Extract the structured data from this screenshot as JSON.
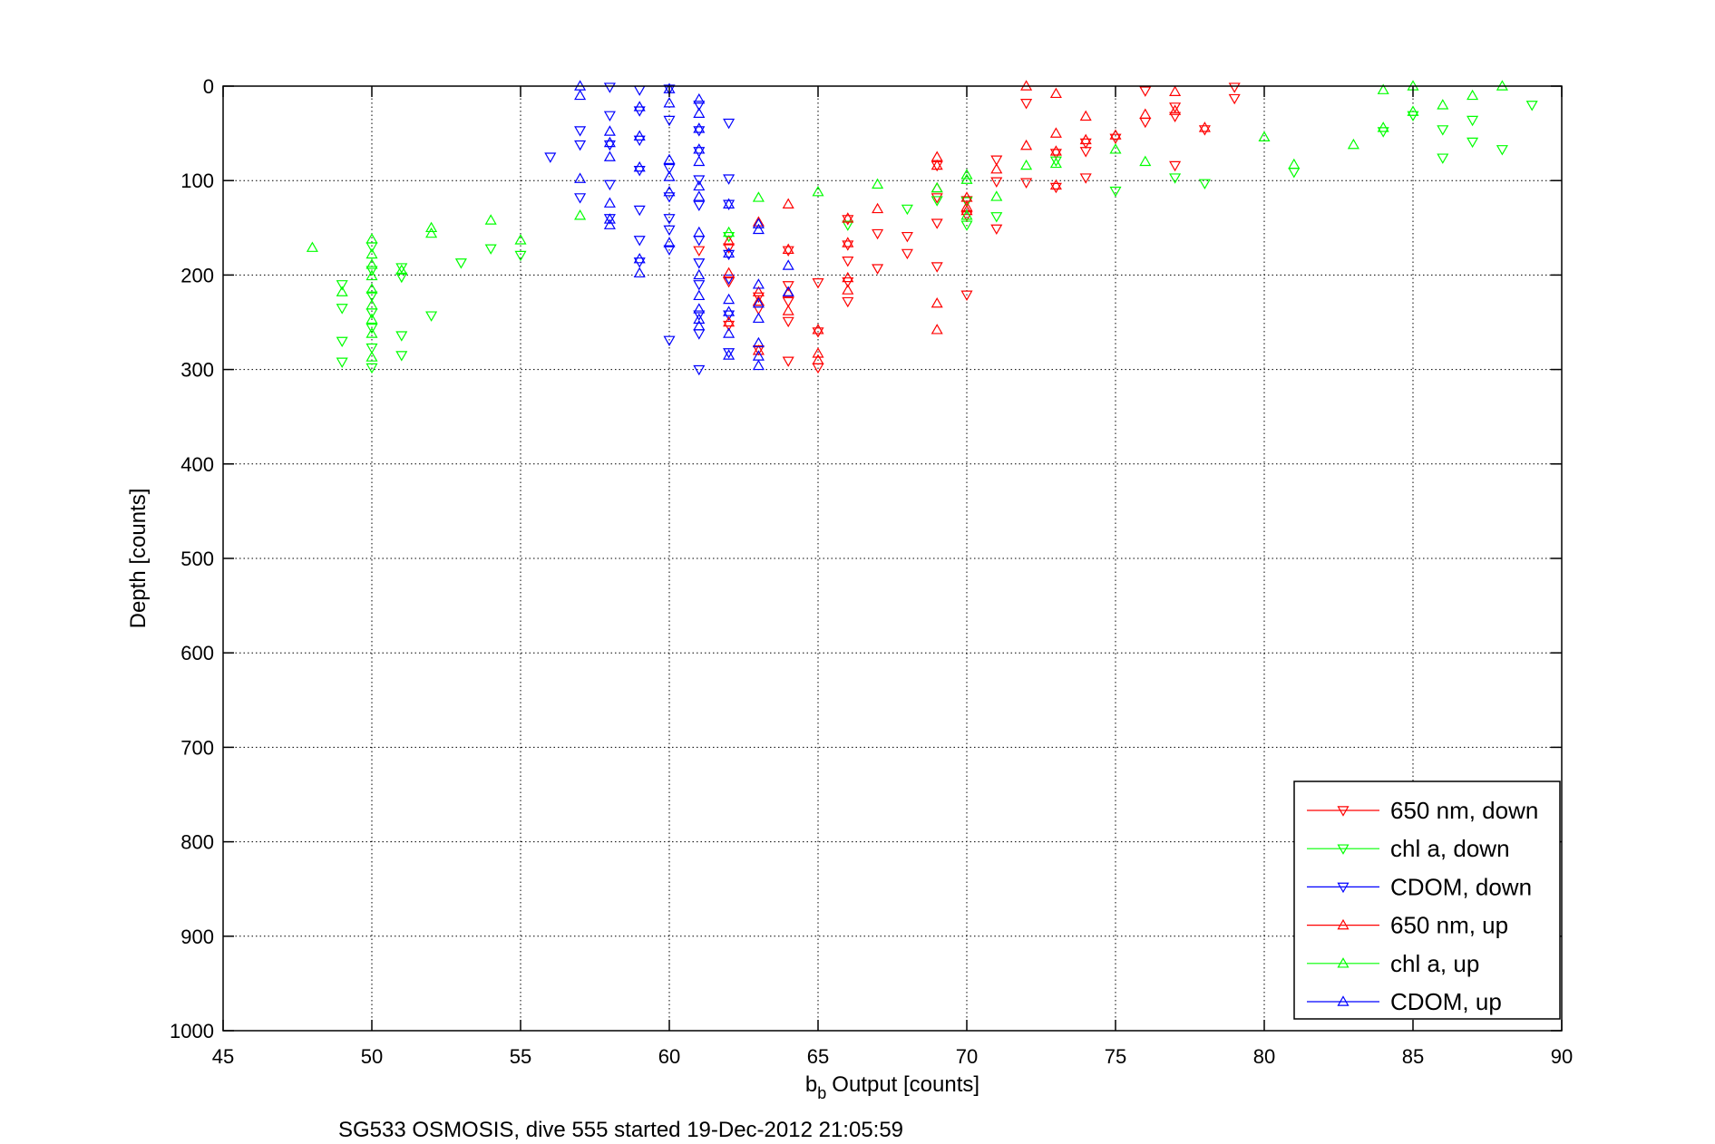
{
  "chart_data": {
    "type": "scatter",
    "xlabel": "Output [counts]",
    "xlabel_base": "b",
    "xlabel_sub": "b",
    "ylabel": "Depth [counts]",
    "caption": "SG533 OSMOSIS, dive 555 started 19-Dec-2012 21:05:59",
    "xlim": [
      45,
      90
    ],
    "ylim": [
      0,
      1000
    ],
    "y_reversed": true,
    "grid": true,
    "legend_position": "bottom-right",
    "x_ticks": [
      "45",
      "50",
      "55",
      "60",
      "65",
      "70",
      "75",
      "80",
      "85",
      "90"
    ],
    "y_ticks": [
      "0",
      "100",
      "200",
      "300",
      "400",
      "500",
      "600",
      "700",
      "800",
      "900",
      "1000"
    ],
    "series": [
      {
        "name": "650 nm, down",
        "marker": "triangle-down",
        "color": "#ff0000",
        "points": [
          [
            79,
            1
          ],
          [
            79,
            13
          ],
          [
            78,
            46
          ],
          [
            77,
            22
          ],
          [
            77,
            32
          ],
          [
            77,
            84
          ],
          [
            76,
            5
          ],
          [
            76,
            38
          ],
          [
            75,
            55
          ],
          [
            74,
            60
          ],
          [
            74,
            69
          ],
          [
            74,
            97
          ],
          [
            73,
            71
          ],
          [
            73,
            107
          ],
          [
            72,
            18
          ],
          [
            72,
            102
          ],
          [
            71,
            78
          ],
          [
            71,
            101
          ],
          [
            71,
            151
          ],
          [
            70,
            121
          ],
          [
            70,
            137
          ],
          [
            70,
            221
          ],
          [
            69,
            84
          ],
          [
            69,
            118
          ],
          [
            69,
            145
          ],
          [
            69,
            191
          ],
          [
            68,
            159
          ],
          [
            68,
            177
          ],
          [
            67,
            156
          ],
          [
            67,
            193
          ],
          [
            66,
            141
          ],
          [
            66,
            168
          ],
          [
            66,
            185
          ],
          [
            66,
            207
          ],
          [
            66,
            228
          ],
          [
            65,
            208
          ],
          [
            65,
            260
          ],
          [
            65,
            298
          ],
          [
            64,
            174
          ],
          [
            64,
            211
          ],
          [
            64,
            228
          ],
          [
            64,
            249
          ],
          [
            64,
            291
          ],
          [
            63,
            223
          ],
          [
            63,
            236
          ],
          [
            63,
            279
          ],
          [
            62,
            171
          ],
          [
            62,
            207
          ],
          [
            62,
            253
          ],
          [
            61,
            174
          ]
        ]
      },
      {
        "name": "chl a, down",
        "marker": "triangle-down",
        "color": "#00ff00",
        "points": [
          [
            89,
            20
          ],
          [
            88,
            67
          ],
          [
            87,
            36
          ],
          [
            87,
            59
          ],
          [
            86,
            46
          ],
          [
            86,
            76
          ],
          [
            85,
            31
          ],
          [
            84,
            48
          ],
          [
            81,
            91
          ],
          [
            78,
            103
          ],
          [
            77,
            97
          ],
          [
            75,
            111
          ],
          [
            73,
            79
          ],
          [
            71,
            138
          ],
          [
            70,
            122
          ],
          [
            70,
            147
          ],
          [
            69,
            121
          ],
          [
            68,
            130
          ],
          [
            66,
            147
          ],
          [
            62,
            159
          ],
          [
            55,
            179
          ],
          [
            54,
            172
          ],
          [
            53,
            187
          ],
          [
            52,
            243
          ],
          [
            51,
            192
          ],
          [
            51,
            202
          ],
          [
            51,
            264
          ],
          [
            51,
            285
          ],
          [
            50,
            170
          ],
          [
            50,
            195
          ],
          [
            50,
            222
          ],
          [
            50,
            240
          ],
          [
            50,
            256
          ],
          [
            50,
            277
          ],
          [
            50,
            298
          ],
          [
            49,
            210
          ],
          [
            49,
            235
          ],
          [
            49,
            270
          ],
          [
            49,
            292
          ]
        ]
      },
      {
        "name": "CDOM, down",
        "marker": "triangle-down",
        "color": "#0000ff",
        "points": [
          [
            62,
            39
          ],
          [
            62,
            98
          ],
          [
            62,
            125
          ],
          [
            62,
            178
          ],
          [
            62,
            204
          ],
          [
            62,
            242
          ],
          [
            62,
            282
          ],
          [
            61,
            20
          ],
          [
            61,
            47
          ],
          [
            61,
            69
          ],
          [
            61,
            99
          ],
          [
            61,
            126
          ],
          [
            61,
            163
          ],
          [
            61,
            187
          ],
          [
            61,
            210
          ],
          [
            61,
            242
          ],
          [
            61,
            262
          ],
          [
            61,
            300
          ],
          [
            60,
            3
          ],
          [
            60,
            36
          ],
          [
            60,
            87
          ],
          [
            60,
            117
          ],
          [
            60,
            140
          ],
          [
            60,
            152
          ],
          [
            60,
            173
          ],
          [
            60,
            269
          ],
          [
            59,
            4
          ],
          [
            59,
            26
          ],
          [
            59,
            57
          ],
          [
            59,
            89
          ],
          [
            59,
            131
          ],
          [
            59,
            163
          ],
          [
            59,
            186
          ],
          [
            58,
            1
          ],
          [
            58,
            31
          ],
          [
            58,
            62
          ],
          [
            58,
            104
          ],
          [
            58,
            140
          ],
          [
            57,
            47
          ],
          [
            57,
            62
          ],
          [
            57,
            118
          ],
          [
            56,
            75
          ]
        ]
      },
      {
        "name": "650 nm, up",
        "marker": "triangle-up",
        "color": "#ff0000",
        "points": [
          [
            78,
            44
          ],
          [
            77,
            6
          ],
          [
            77,
            26
          ],
          [
            76,
            30
          ],
          [
            75,
            52
          ],
          [
            74,
            32
          ],
          [
            74,
            57
          ],
          [
            73,
            8
          ],
          [
            73,
            50
          ],
          [
            73,
            69
          ],
          [
            73,
            105
          ],
          [
            72,
            0
          ],
          [
            72,
            63
          ],
          [
            71,
            88
          ],
          [
            70,
            118
          ],
          [
            70,
            128
          ],
          [
            70,
            132
          ],
          [
            69,
            75
          ],
          [
            69,
            84
          ],
          [
            69,
            108
          ],
          [
            69,
            230
          ],
          [
            69,
            258
          ],
          [
            67,
            130
          ],
          [
            66,
            140
          ],
          [
            66,
            166
          ],
          [
            66,
            203
          ],
          [
            66,
            216
          ],
          [
            65,
            258
          ],
          [
            65,
            283
          ],
          [
            65,
            290
          ],
          [
            64,
            125
          ],
          [
            64,
            173
          ],
          [
            64,
            219
          ],
          [
            64,
            238
          ],
          [
            63,
            144
          ],
          [
            63,
            218
          ],
          [
            63,
            228
          ],
          [
            63,
            280
          ],
          [
            62,
            164
          ],
          [
            62,
            198
          ],
          [
            62,
            250
          ]
        ]
      },
      {
        "name": "chl a, up",
        "marker": "triangle-up",
        "color": "#00ff00",
        "points": [
          [
            88,
            0
          ],
          [
            87,
            10
          ],
          [
            86,
            20
          ],
          [
            85,
            0
          ],
          [
            85,
            27
          ],
          [
            84,
            4
          ],
          [
            84,
            44
          ],
          [
            83,
            62
          ],
          [
            81,
            83
          ],
          [
            80,
            54
          ],
          [
            76,
            80
          ],
          [
            75,
            67
          ],
          [
            73,
            82
          ],
          [
            72,
            84
          ],
          [
            71,
            117
          ],
          [
            70,
            94
          ],
          [
            70,
            99
          ],
          [
            70,
            137
          ],
          [
            69,
            108
          ],
          [
            67,
            104
          ],
          [
            65,
            112
          ],
          [
            63,
            118
          ],
          [
            62,
            155
          ],
          [
            57,
            137
          ],
          [
            55,
            163
          ],
          [
            54,
            142
          ],
          [
            52,
            150
          ],
          [
            52,
            156
          ],
          [
            51,
            195
          ],
          [
            50,
            162
          ],
          [
            50,
            178
          ],
          [
            50,
            189
          ],
          [
            50,
            201
          ],
          [
            50,
            215
          ],
          [
            50,
            232
          ],
          [
            50,
            247
          ],
          [
            50,
            262
          ],
          [
            50,
            287
          ],
          [
            49,
            218
          ],
          [
            48,
            171
          ]
        ]
      },
      {
        "name": "CDOM, up",
        "marker": "triangle-up",
        "color": "#0000ff",
        "points": [
          [
            64,
            190
          ],
          [
            64,
            218
          ],
          [
            63,
            146
          ],
          [
            63,
            152
          ],
          [
            63,
            210
          ],
          [
            63,
            230
          ],
          [
            63,
            246
          ],
          [
            63,
            272
          ],
          [
            63,
            286
          ],
          [
            63,
            296
          ],
          [
            62,
            125
          ],
          [
            62,
            177
          ],
          [
            62,
            226
          ],
          [
            62,
            239
          ],
          [
            62,
            262
          ],
          [
            62,
            285
          ],
          [
            61,
            14
          ],
          [
            61,
            29
          ],
          [
            61,
            45
          ],
          [
            61,
            67
          ],
          [
            61,
            80
          ],
          [
            61,
            106
          ],
          [
            61,
            117
          ],
          [
            61,
            155
          ],
          [
            61,
            200
          ],
          [
            61,
            222
          ],
          [
            61,
            236
          ],
          [
            61,
            247
          ],
          [
            61,
            254
          ],
          [
            60,
            3
          ],
          [
            60,
            18
          ],
          [
            60,
            78
          ],
          [
            60,
            96
          ],
          [
            60,
            112
          ],
          [
            60,
            166
          ],
          [
            59,
            22
          ],
          [
            59,
            53
          ],
          [
            59,
            86
          ],
          [
            59,
            183
          ],
          [
            59,
            198
          ],
          [
            58,
            48
          ],
          [
            58,
            60
          ],
          [
            58,
            75
          ],
          [
            58,
            124
          ],
          [
            58,
            141
          ],
          [
            58,
            147
          ],
          [
            57,
            0
          ],
          [
            57,
            10
          ],
          [
            57,
            98
          ]
        ]
      }
    ]
  }
}
